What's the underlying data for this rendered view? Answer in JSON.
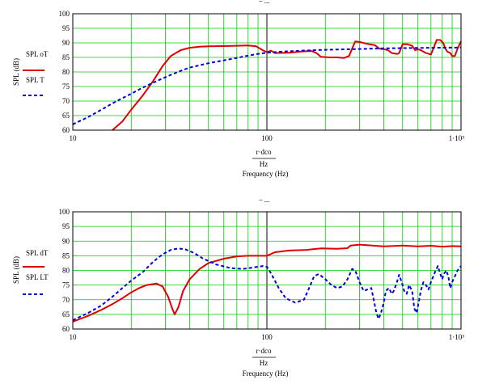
{
  "chart_data": [
    {
      "type": "line",
      "title": "",
      "xlabel_top": "r·dco",
      "xlabel_unit": "Hz",
      "xlabel": "Frequency (Hz)",
      "ylabel": "SPL (dB)",
      "xscale": "log",
      "xlim": [
        10,
        1000
      ],
      "ylim": [
        60,
        100
      ],
      "yticks": [
        60,
        65,
        70,
        75,
        80,
        85,
        90,
        95,
        100
      ],
      "xtick_labels": [
        "10",
        "100",
        "1·10³"
      ],
      "legend": [
        "SPL oT",
        "SPL T"
      ],
      "series": [
        {
          "name": "SPL oT",
          "color": "#e00000",
          "style": "solid",
          "points": [
            [
              16,
              60
            ],
            [
              18,
              63
            ],
            [
              20,
              67
            ],
            [
              23,
              72
            ],
            [
              26,
              77
            ],
            [
              29,
              82
            ],
            [
              32,
              85.5
            ],
            [
              36,
              87.5
            ],
            [
              40,
              88.3
            ],
            [
              45,
              88.7
            ],
            [
              50,
              88.8
            ],
            [
              60,
              88.9
            ],
            [
              70,
              89
            ],
            [
              80,
              89.1
            ],
            [
              88,
              88.8
            ],
            [
              95,
              87.5
            ],
            [
              100,
              86.8
            ],
            [
              105,
              87.3
            ],
            [
              110,
              86.5
            ],
            [
              130,
              86.6
            ],
            [
              150,
              87
            ],
            [
              170,
              87.2
            ],
            [
              180,
              86.5
            ],
            [
              190,
              85.2
            ],
            [
              210,
              85
            ],
            [
              230,
              85
            ],
            [
              250,
              84.8
            ],
            [
              265,
              85.5
            ],
            [
              275,
              88
            ],
            [
              285,
              90.5
            ],
            [
              300,
              90.3
            ],
            [
              330,
              89.6
            ],
            [
              360,
              89.2
            ],
            [
              380,
              88
            ],
            [
              400,
              87.8
            ],
            [
              420,
              87.5
            ],
            [
              440,
              86.5
            ],
            [
              470,
              86.2
            ],
            [
              480,
              86.5
            ],
            [
              500,
              89.5
            ],
            [
              530,
              89.5
            ],
            [
              560,
              89
            ],
            [
              580,
              87.5
            ],
            [
              600,
              87.8
            ],
            [
              620,
              87.5
            ],
            [
              660,
              86.5
            ],
            [
              700,
              86
            ],
            [
              720,
              88
            ],
            [
              750,
              91
            ],
            [
              780,
              91
            ],
            [
              810,
              90
            ],
            [
              830,
              88
            ],
            [
              850,
              87
            ],
            [
              880,
              86.5
            ],
            [
              900,
              85.5
            ],
            [
              930,
              85.5
            ],
            [
              960,
              88
            ],
            [
              1000,
              90.5
            ]
          ]
        },
        {
          "name": "SPL T",
          "color": "#0000dd",
          "style": "dashed",
          "points": [
            [
              10,
              62
            ],
            [
              12,
              64.5
            ],
            [
              14,
              67
            ],
            [
              16,
              69.2
            ],
            [
              18,
              71
            ],
            [
              20,
              72.5
            ],
            [
              22,
              74
            ],
            [
              25,
              75.8
            ],
            [
              28,
              77.3
            ],
            [
              32,
              79
            ],
            [
              36,
              80.4
            ],
            [
              40,
              81.5
            ],
            [
              50,
              83
            ],
            [
              60,
              84
            ],
            [
              70,
              84.8
            ],
            [
              80,
              85.6
            ],
            [
              90,
              86.2
            ],
            [
              100,
              86.6
            ],
            [
              120,
              87
            ],
            [
              150,
              87.3
            ],
            [
              200,
              87.6
            ],
            [
              300,
              87.9
            ],
            [
              400,
              88.1
            ],
            [
              500,
              88.2
            ],
            [
              700,
              88.3
            ],
            [
              1000,
              88.4
            ]
          ]
        }
      ]
    },
    {
      "type": "line",
      "title": "",
      "xlabel_top": "r·dco",
      "xlabel_unit": "Hz",
      "xlabel": "Frequency (Hz)",
      "ylabel": "SPL (dB)",
      "xscale": "log",
      "xlim": [
        10,
        1000
      ],
      "ylim": [
        60,
        100
      ],
      "yticks": [
        60,
        65,
        70,
        75,
        80,
        85,
        90,
        95,
        100
      ],
      "xtick_labels": [
        "10",
        "100",
        "1·10³"
      ],
      "legend": [
        "SPL dT",
        "SPL LT"
      ],
      "series": [
        {
          "name": "SPL dT",
          "color": "#e00000",
          "style": "solid",
          "points": [
            [
              10,
              62.5
            ],
            [
              12,
              64.5
            ],
            [
              14,
              66.5
            ],
            [
              16,
              68.5
            ],
            [
              18,
              70.5
            ],
            [
              20,
              72.5
            ],
            [
              22,
              74
            ],
            [
              24,
              75
            ],
            [
              27,
              75.5
            ],
            [
              29,
              74.5
            ],
            [
              31,
              71
            ],
            [
              32.5,
              67
            ],
            [
              33.5,
              65
            ],
            [
              35,
              67.5
            ],
            [
              37,
              73
            ],
            [
              40,
              77
            ],
            [
              45,
              80.5
            ],
            [
              50,
              82.5
            ],
            [
              60,
              84
            ],
            [
              70,
              84.8
            ],
            [
              80,
              85
            ],
            [
              90,
              85
            ],
            [
              100,
              85
            ],
            [
              110,
              86.2
            ],
            [
              130,
              86.8
            ],
            [
              160,
              87
            ],
            [
              190,
              87.5
            ],
            [
              230,
              87.4
            ],
            [
              260,
              87.6
            ],
            [
              270,
              88.5
            ],
            [
              300,
              88.8
            ],
            [
              400,
              88.2
            ],
            [
              500,
              88.5
            ],
            [
              600,
              88.2
            ],
            [
              700,
              88.4
            ],
            [
              800,
              88.1
            ],
            [
              900,
              88.3
            ],
            [
              1000,
              88.2
            ]
          ]
        },
        {
          "name": "SPL LT",
          "color": "#0000dd",
          "style": "dashed",
          "points": [
            [
              10,
              63
            ],
            [
              12,
              65.5
            ],
            [
              14,
              68
            ],
            [
              16,
              71
            ],
            [
              18,
              74
            ],
            [
              20,
              76.5
            ],
            [
              23,
              79.5
            ],
            [
              26,
              83
            ],
            [
              29,
              85.5
            ],
            [
              32,
              87
            ],
            [
              35,
              87.5
            ],
            [
              38,
              87.2
            ],
            [
              42,
              86
            ],
            [
              47,
              84
            ],
            [
              55,
              82
            ],
            [
              65,
              80.8
            ],
            [
              75,
              80.5
            ],
            [
              85,
              81
            ],
            [
              95,
              81.5
            ],
            [
              100,
              81.2
            ],
            [
              105,
              79
            ],
            [
              115,
              74
            ],
            [
              125,
              70.5
            ],
            [
              140,
              69
            ],
            [
              155,
              70
            ],
            [
              165,
              74
            ],
            [
              175,
              78
            ],
            [
              185,
              78.8
            ],
            [
              200,
              77
            ],
            [
              215,
              75
            ],
            [
              230,
              74
            ],
            [
              245,
              74.5
            ],
            [
              260,
              77
            ],
            [
              275,
              80.5
            ],
            [
              285,
              80
            ],
            [
              300,
              76
            ],
            [
              315,
              73
            ],
            [
              330,
              73.5
            ],
            [
              345,
              74
            ],
            [
              355,
              70
            ],
            [
              365,
              66
            ],
            [
              375,
              63.5
            ],
            [
              385,
              65
            ],
            [
              400,
              69
            ],
            [
              410,
              73
            ],
            [
              425,
              74
            ],
            [
              440,
              72
            ],
            [
              450,
              73
            ],
            [
              465,
              75.5
            ],
            [
              480,
              78.5
            ],
            [
              495,
              76
            ],
            [
              510,
              73
            ],
            [
              525,
              72
            ],
            [
              540,
              75
            ],
            [
              560,
              73
            ],
            [
              575,
              67
            ],
            [
              590,
              65.5
            ],
            [
              605,
              69
            ],
            [
              620,
              73
            ],
            [
              640,
              76
            ],
            [
              660,
              75
            ],
            [
              680,
              73.5
            ],
            [
              700,
              76
            ],
            [
              720,
              78
            ],
            [
              740,
              80
            ],
            [
              760,
              81.5
            ],
            [
              780,
              79
            ],
            [
              800,
              77
            ],
            [
              820,
              79
            ],
            [
              840,
              80
            ],
            [
              860,
              78
            ],
            [
              880,
              74
            ],
            [
              900,
              76
            ],
            [
              930,
              78
            ],
            [
              960,
              80
            ],
            [
              1000,
              81.5
            ]
          ]
        }
      ]
    }
  ]
}
